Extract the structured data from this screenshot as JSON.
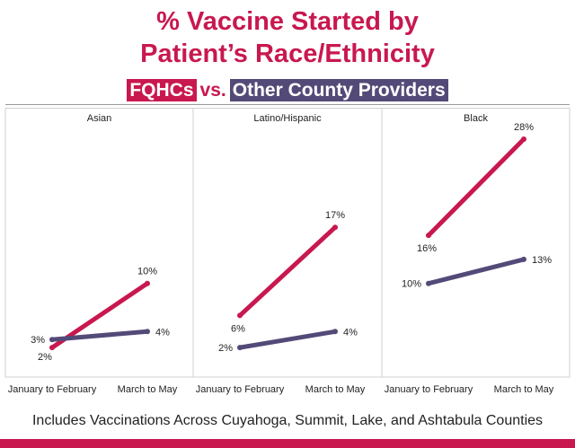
{
  "title_line1": "% Vaccine Started by",
  "title_line2": "Patient’s Race/Ethnicity",
  "subtitle": {
    "fqhc": "FQHCs",
    "vs": "vs.",
    "other": "Other County Providers"
  },
  "footnote": "Includes Vaccinations Across Cuyahoga, Summit, Lake, and Ashtabula Counties",
  "colors": {
    "fqhc": "#c8184f",
    "other": "#544a78",
    "title": "#c8184f"
  },
  "chart_data": {
    "type": "line",
    "categories": [
      "January to February",
      "March to May"
    ],
    "ylim": [
      0,
      30
    ],
    "panels": [
      {
        "title": "Asian",
        "series": [
          {
            "name": "FQHCs",
            "values": [
              2,
              10
            ],
            "labels": [
              "2%",
              "10%"
            ]
          },
          {
            "name": "Other County Providers",
            "values": [
              3,
              4
            ],
            "labels": [
              "3%",
              "4%"
            ]
          }
        ]
      },
      {
        "title": "Latino/Hispanic",
        "series": [
          {
            "name": "FQHCs",
            "values": [
              6,
              17
            ],
            "labels": [
              "6%",
              "17%"
            ]
          },
          {
            "name": "Other County Providers",
            "values": [
              2,
              4
            ],
            "labels": [
              "2%",
              "4%"
            ]
          }
        ]
      },
      {
        "title": "Black",
        "series": [
          {
            "name": "FQHCs",
            "values": [
              16,
              28
            ],
            "labels": [
              "16%",
              "28%"
            ]
          },
          {
            "name": "Other County Providers",
            "values": [
              10,
              13
            ],
            "labels": [
              "10%",
              "13%"
            ]
          }
        ]
      }
    ]
  }
}
